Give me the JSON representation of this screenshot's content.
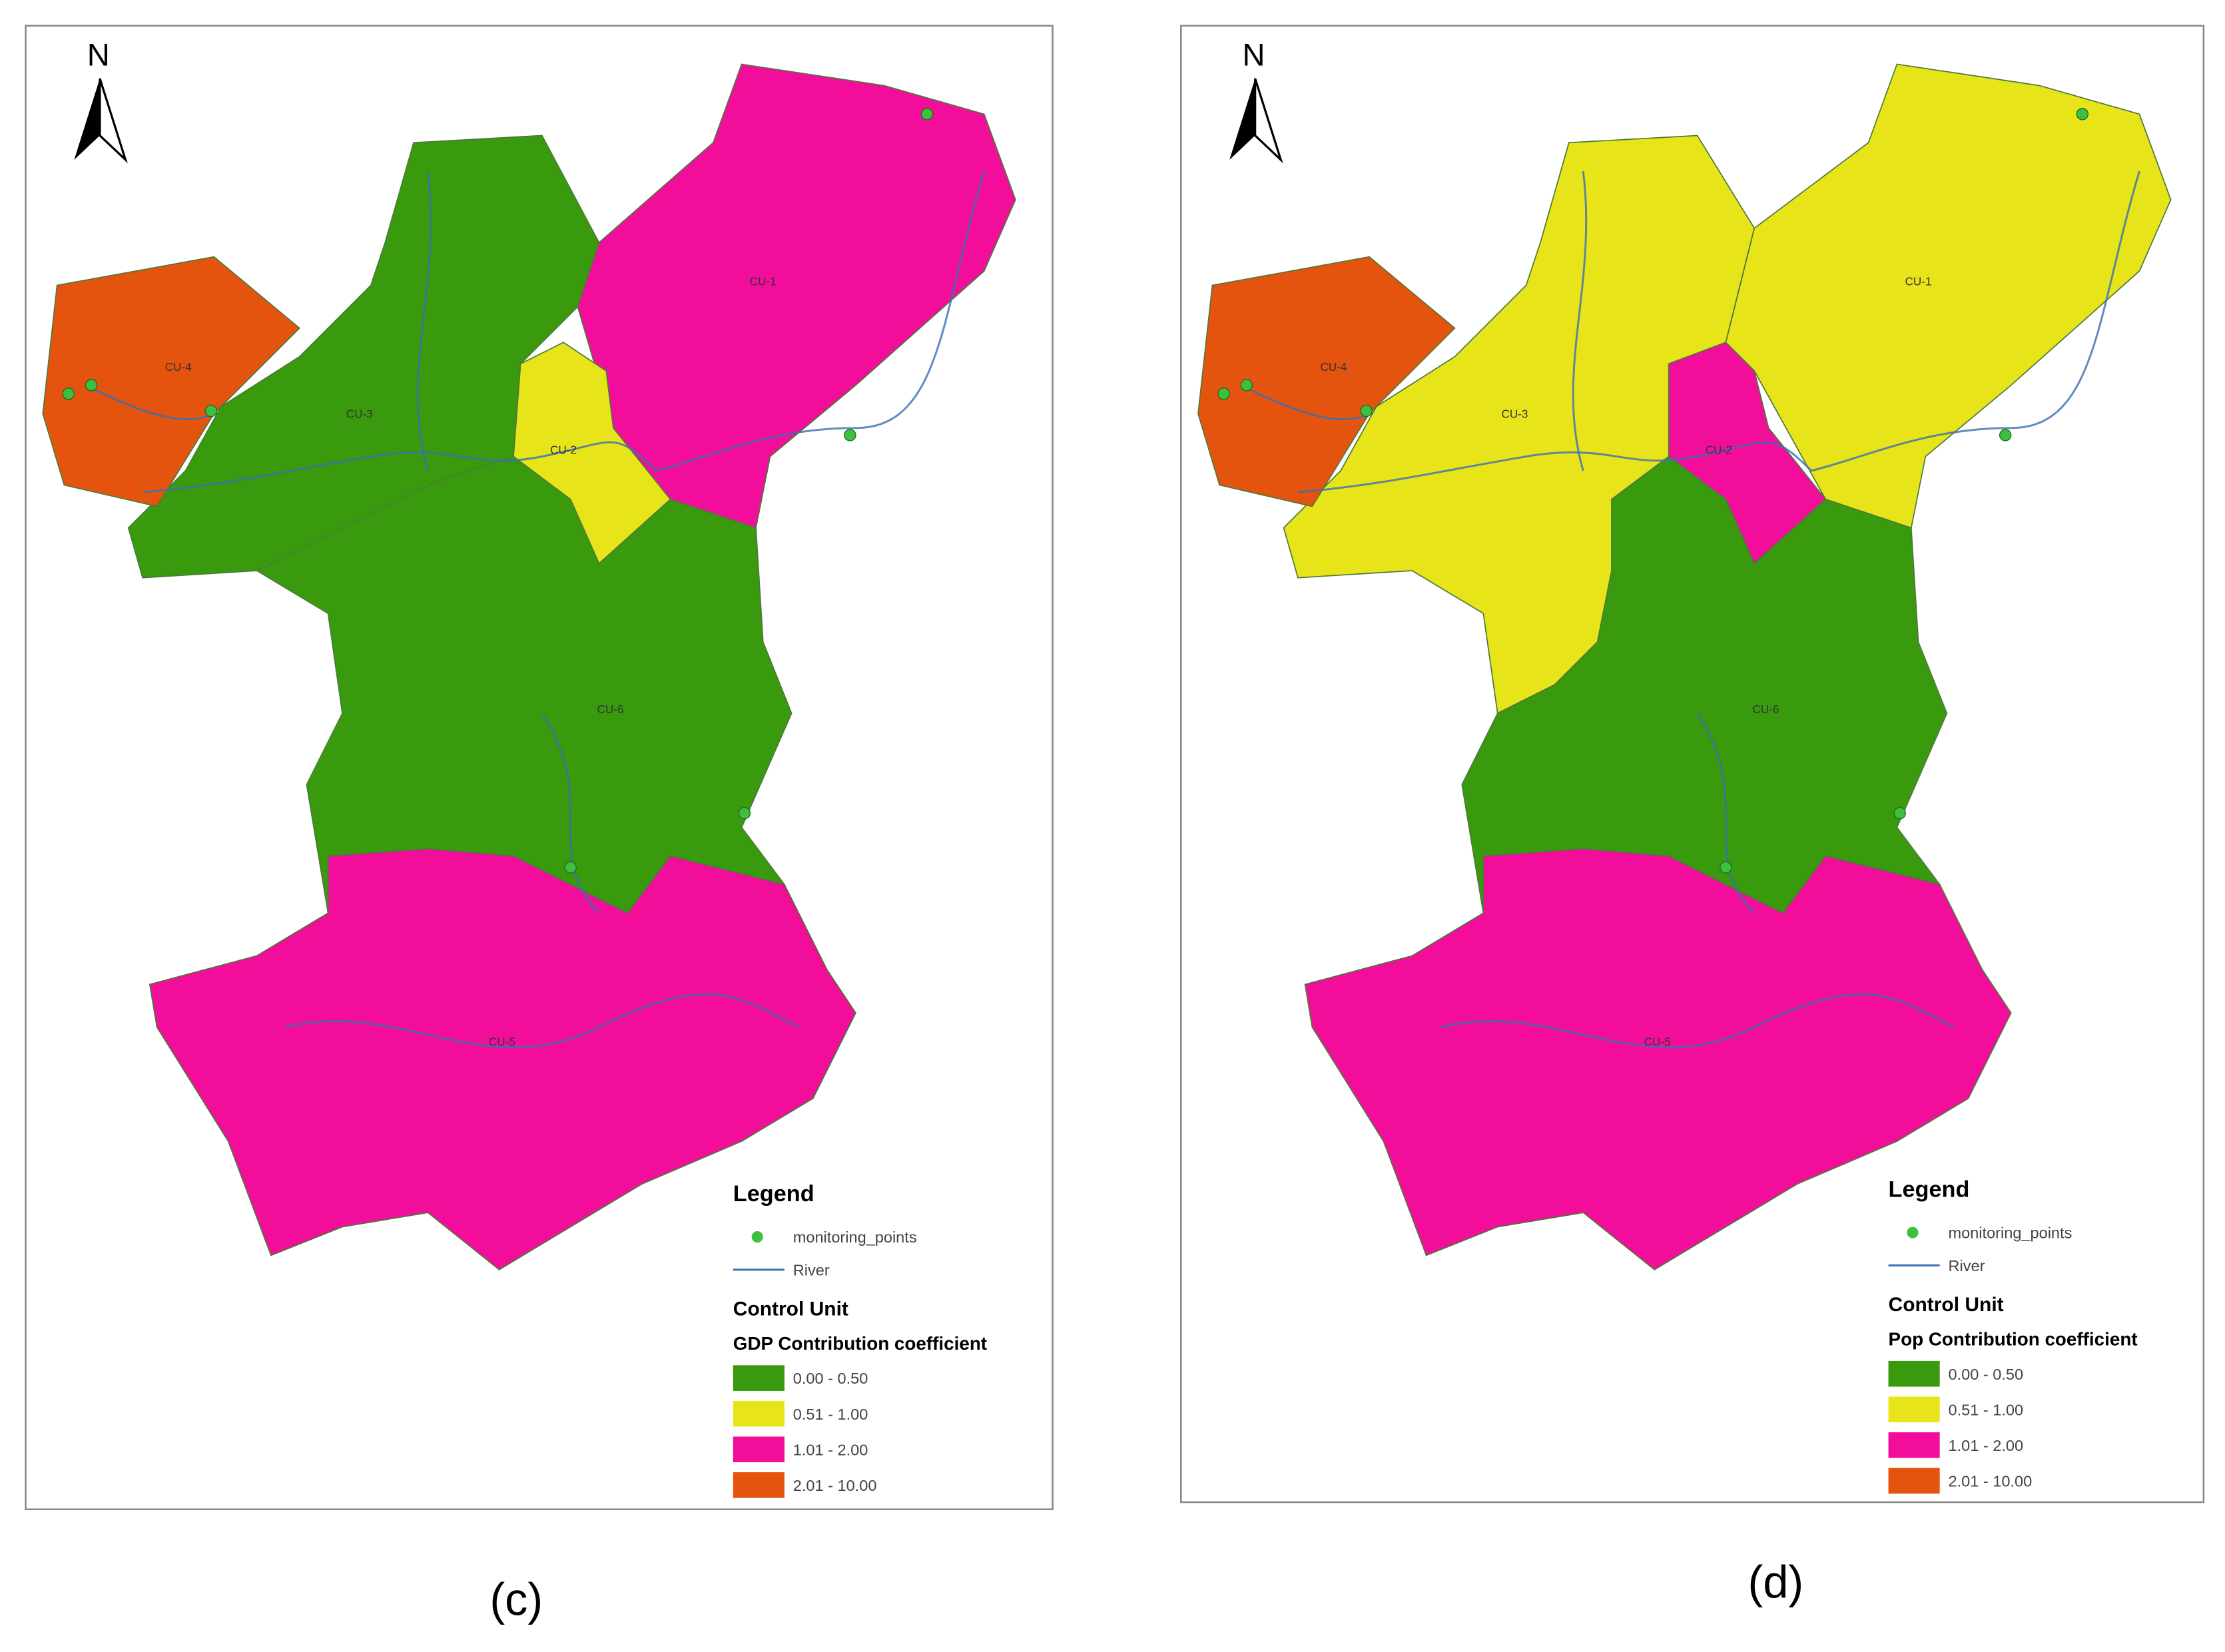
{
  "panels": [
    {
      "caption": "(c)",
      "north": "N",
      "legend": {
        "title": "Legend",
        "points": "monitoring_points",
        "river": "River",
        "group": "Control Unit",
        "field": "GDP Contribution coefficient",
        "classes": [
          {
            "label": "0.00 - 0.50",
            "color": "#3a9a0e"
          },
          {
            "label": "0.51 - 1.00",
            "color": "#e8e41a"
          },
          {
            "label": "1.01 - 2.00",
            "color": "#f20e9a"
          },
          {
            "label": "2.01 - 10.00",
            "color": "#e4540e"
          }
        ]
      },
      "units": [
        {
          "label": "CU-1",
          "class": 2
        },
        {
          "label": "CU-2",
          "class": 1
        },
        {
          "label": "CU-3",
          "class": 0
        },
        {
          "label": "CU-4",
          "class": 3
        },
        {
          "label": "CU-5",
          "class": 2
        },
        {
          "label": "CU-6",
          "class": 0
        }
      ]
    },
    {
      "caption": "(d)",
      "north": "N",
      "legend": {
        "title": "Legend",
        "points": "monitoring_points",
        "river": "River",
        "group": "Control Unit",
        "field": "Pop Contribution coefficient",
        "classes": [
          {
            "label": "0.00 - 0.50",
            "color": "#3a9a0e"
          },
          {
            "label": "0.51 - 1.00",
            "color": "#e8e41a"
          },
          {
            "label": "1.01 - 2.00",
            "color": "#f20e9a"
          },
          {
            "label": "2.01 - 10.00",
            "color": "#e4540e"
          }
        ]
      },
      "units": [
        {
          "label": "CU-1",
          "class": 1
        },
        {
          "label": "CU-2",
          "class": 2
        },
        {
          "label": "CU-3",
          "class": 1
        },
        {
          "label": "CU-4",
          "class": 3
        },
        {
          "label": "CU-5",
          "class": 2
        },
        {
          "label": "CU-6",
          "class": 0
        }
      ]
    }
  ]
}
